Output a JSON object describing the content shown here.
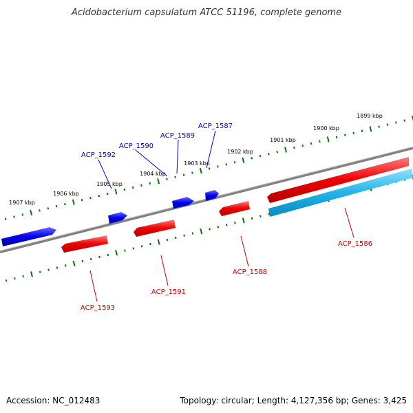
{
  "title": "Acidobacterium capsulatum ATCC 51196, complete genome",
  "footer": {
    "accession": "Accession: NC_012483",
    "topology": "Topology: circular; Length: 4,127,356 bp; Genes: 3,425"
  },
  "colors": {
    "backbone": "#808080",
    "forward_gene": "#0000ee",
    "reverse_gene": "#ee0000",
    "other_gene": "#22b4e6",
    "tick": "#007700",
    "label_forward": "#0000cc",
    "label_reverse": "#cc0000"
  },
  "ticks": [
    {
      "label": "1899 kbp"
    },
    {
      "label": "1900 kbp"
    },
    {
      "label": "1901 kbp"
    },
    {
      "label": "1902 kbp"
    },
    {
      "label": "1903 kbp"
    },
    {
      "label": "1904 kbp"
    },
    {
      "label": "1905 kbp"
    },
    {
      "label": "1906 kbp"
    },
    {
      "label": "1907 kbp"
    }
  ],
  "genes": [
    {
      "id": "ACP_1587",
      "strand": "forward"
    },
    {
      "id": "ACP_1589",
      "strand": "forward"
    },
    {
      "id": "ACP_1590",
      "strand": "forward"
    },
    {
      "id": "ACP_1592",
      "strand": "forward"
    },
    {
      "id": "ACP_1586",
      "strand": "reverse"
    },
    {
      "id": "ACP_1588",
      "strand": "reverse"
    },
    {
      "id": "ACP_1591",
      "strand": "reverse"
    },
    {
      "id": "ACP_1593",
      "strand": "reverse"
    }
  ]
}
